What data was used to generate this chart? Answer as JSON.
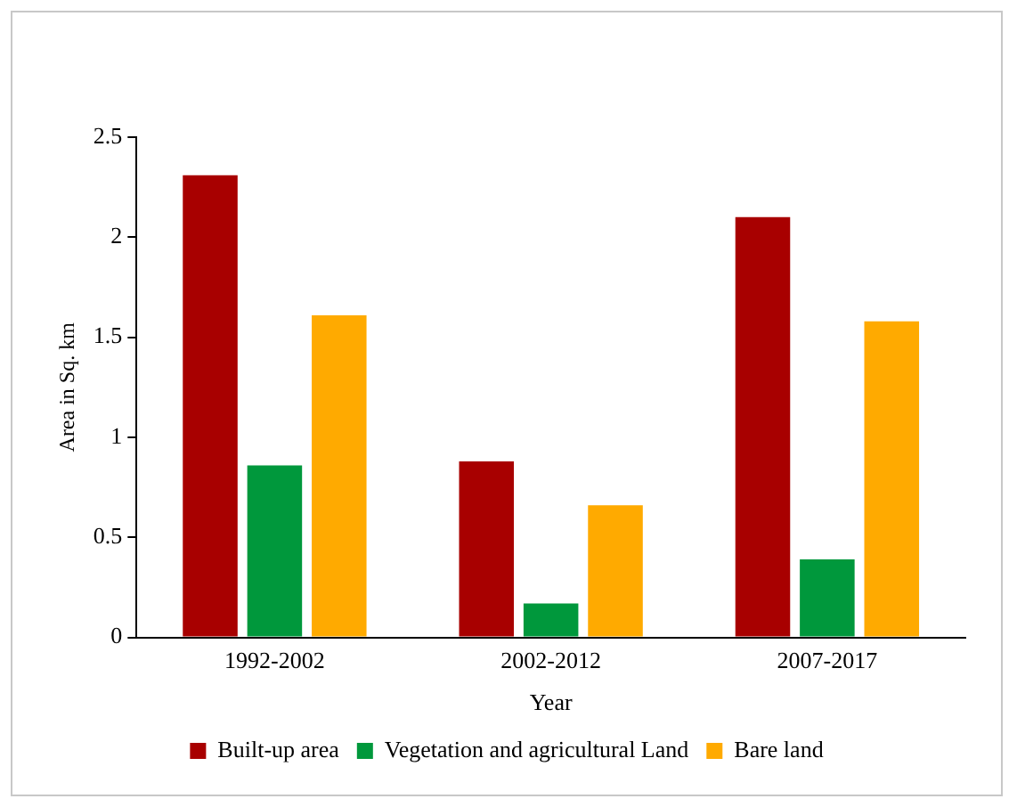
{
  "chart_data": {
    "type": "bar",
    "xlabel": "Year",
    "ylabel": "Area in Sq. km",
    "categories": [
      "1992-2002",
      "2002-2012",
      "2007-2017"
    ],
    "series": [
      {
        "name": "Built-up area",
        "color": "#a80000",
        "values": [
          2.31,
          0.88,
          2.1
        ]
      },
      {
        "name": "Vegetation and agricultural Land",
        "color": "#00983c",
        "values": [
          0.86,
          0.17,
          0.39
        ]
      },
      {
        "name": "Bare land",
        "color": "#ffaa00",
        "values": [
          1.61,
          0.66,
          1.58
        ]
      }
    ],
    "ylim": [
      0,
      2.5
    ],
    "yticks": [
      0,
      0.5,
      1,
      1.5,
      2,
      2.5
    ],
    "grid": false,
    "legend": "bottom"
  }
}
